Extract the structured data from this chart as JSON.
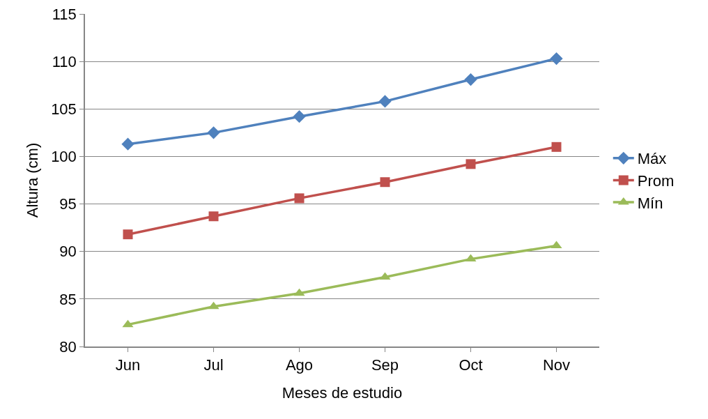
{
  "chart_data": {
    "type": "line",
    "xlabel": "Meses de estudio",
    "ylabel": "Altura (cm)",
    "categories": [
      "Jun",
      "Jul",
      "Ago",
      "Sep",
      "Oct",
      "Nov"
    ],
    "series": [
      {
        "name": "Máx",
        "color": "#4f81bd",
        "marker": "diamond",
        "values": [
          101.3,
          102.5,
          104.2,
          105.8,
          108.1,
          110.3
        ]
      },
      {
        "name": "Prom",
        "color": "#c0504d",
        "marker": "square",
        "values": [
          91.8,
          93.7,
          95.6,
          97.3,
          99.2,
          101.0
        ]
      },
      {
        "name": "Mín",
        "color": "#9bbb59",
        "marker": "triangle",
        "values": [
          82.3,
          84.2,
          85.6,
          87.3,
          89.2,
          90.6
        ]
      }
    ],
    "ylim": [
      80,
      115
    ],
    "yticks": [
      80,
      85,
      90,
      95,
      100,
      105,
      110,
      115
    ],
    "grid": "y",
    "legend": "right",
    "line_style": "solid"
  }
}
